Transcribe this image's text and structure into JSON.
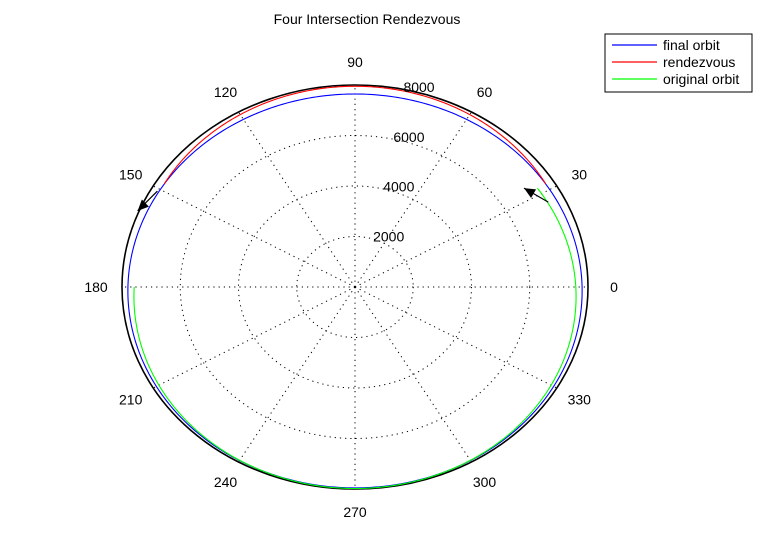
{
  "chart_data": {
    "type": "polar",
    "title": "Four Intersection Rendezvous",
    "r_max": 8000,
    "radial_ticks": [
      "2000",
      "4000",
      "6000",
      "8000"
    ],
    "radial_values": [
      2000,
      4000,
      6000,
      8000
    ],
    "angle_tick_labels": [
      "0",
      "30",
      "60",
      "90",
      "120",
      "150",
      "180",
      "210",
      "240",
      "270",
      "300",
      "330"
    ],
    "angle_values_deg": [
      0,
      30,
      60,
      90,
      120,
      150,
      180,
      210,
      240,
      270,
      300,
      330
    ],
    "grid": true,
    "legend_position": "top-right",
    "series": [
      {
        "name": "final orbit",
        "color": "#0000ff",
        "semi_major_axis": 7800,
        "eccentricity": 0.02,
        "periapsis_deg": 90,
        "theta_start_deg": 0,
        "theta_end_deg": 360
      },
      {
        "name": "rendezvous",
        "color": "#ff0000",
        "semi_major_axis": 7500,
        "eccentricity": 0.06,
        "periapsis_deg": 270,
        "theta_start_deg": 32,
        "theta_end_deg": 148
      },
      {
        "name": "original orbit",
        "color": "#00ff00",
        "semi_major_axis": 7600,
        "eccentricity": 0.05,
        "periapsis_deg": 90,
        "theta_start_deg": 180,
        "theta_end_deg": 392
      }
    ],
    "arrows": [
      {
        "name": "direction-arrow-right",
        "theta_deg": 34,
        "r": 7000,
        "direction_deg": 150
      },
      {
        "name": "direction-arrow-left",
        "theta_deg": 158,
        "r": 8050,
        "direction_deg": 225
      }
    ]
  }
}
